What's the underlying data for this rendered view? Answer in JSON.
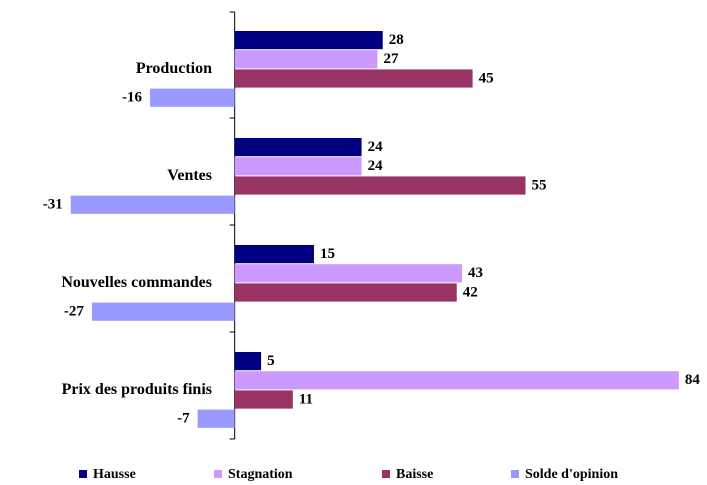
{
  "chart_data": {
    "type": "hbar",
    "categories": [
      "Production",
      "Ventes",
      "Nouvelles commandes",
      "Prix des produits finis"
    ],
    "series": [
      {
        "name": "Hausse",
        "color": "#000080",
        "values": [
          28,
          24,
          15,
          5
        ]
      },
      {
        "name": "Stagnation",
        "color": "#cc99ff",
        "values": [
          27,
          24,
          43,
          84
        ]
      },
      {
        "name": "Baisse",
        "color": "#993366",
        "values": [
          45,
          55,
          42,
          11
        ]
      },
      {
        "name": "Solde d'opinion",
        "color": "#9999ff",
        "values": [
          -16,
          -31,
          -27,
          -7
        ]
      }
    ],
    "xlim": [
      -44,
      88
    ],
    "legend": "bottom"
  }
}
